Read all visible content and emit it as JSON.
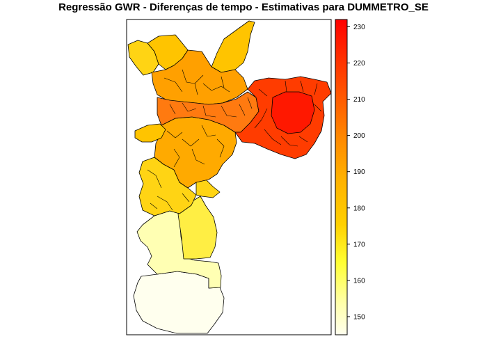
{
  "title": "Regressão GWR - Diferenças de tempo - Estimativas para DUMMETRO_SE",
  "legend": {
    "type": "continuous-color-bar",
    "min": 145,
    "max": 232,
    "ticks": [
      "150",
      "160",
      "170",
      "180",
      "190",
      "200",
      "210",
      "220",
      "230"
    ],
    "tick_values": [
      150,
      160,
      170,
      180,
      190,
      200,
      210,
      220,
      230
    ],
    "colors": [
      "#ffffee",
      "#ffffaa",
      "#ffff33",
      "#ffd000",
      "#ffb000",
      "#ff8a00",
      "#ff5a00",
      "#ff2e00",
      "#ff0000"
    ]
  },
  "map": {
    "subject": "São Paulo districts choropleth",
    "colors": {
      "north_west": "#ffc400",
      "north_center": "#ffa000",
      "center": "#ff7a10",
      "east": "#ff3c00",
      "east_core": "#ff1800",
      "west": "#ffaa00",
      "south_west": "#ffd414",
      "south_mid": "#ffee44",
      "south": "#ffffb3",
      "far_south": "#ffffee",
      "outline": "#000000"
    }
  }
}
